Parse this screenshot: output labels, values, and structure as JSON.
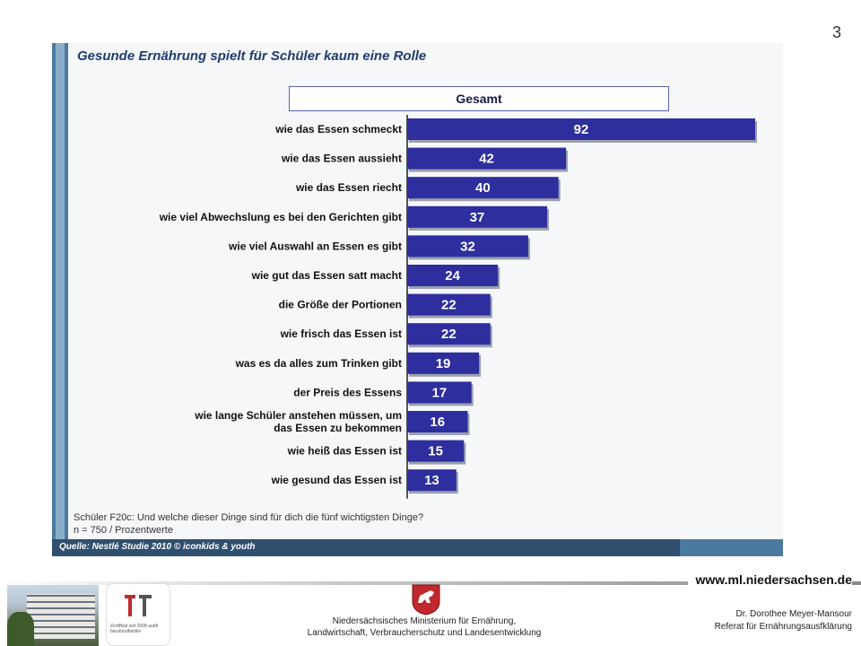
{
  "page_number": "3",
  "chart_data": {
    "type": "bar",
    "orientation": "horizontal",
    "title": "Gesunde Ernährung spielt für Schüler kaum eine Rolle",
    "series": [
      {
        "name": "Gesamt",
        "color": "#2e2e9e",
        "values": [
          92,
          42,
          40,
          37,
          32,
          24,
          22,
          22,
          19,
          17,
          16,
          15,
          13
        ]
      }
    ],
    "categories": [
      [
        "wie das Essen schmeckt"
      ],
      [
        "wie das Essen aussieht"
      ],
      [
        "wie das Essen riecht"
      ],
      [
        "wie viel Abwechslung es bei den Gerichten gibt"
      ],
      [
        "wie viel Auswahl an Essen es gibt"
      ],
      [
        "wie gut das Essen satt macht"
      ],
      [
        "die Größe der Portionen"
      ],
      [
        "wie frisch das Essen ist"
      ],
      [
        "was es da alles zum Trinken gibt"
      ],
      [
        "der Preis des Essens"
      ],
      [
        "wie lange Schüler anstehen müssen, um",
        "das Essen zu bekommen"
      ],
      [
        "wie heiß das Essen ist"
      ],
      [
        "wie gesund das Essen ist"
      ]
    ],
    "xlim": [
      0,
      92
    ],
    "grid": false,
    "legend": "top"
  },
  "question_line1": "Schüler F20c: Und welche dieser Dinge sind für dich die fünf wichtigsten Dinge?",
  "question_line2": "n = 750 / Prozentwerte",
  "source": "Quelle: Nestlé Studie 2010 © iconkids & youth",
  "footer": {
    "url": "www.ml.niedersachsen.de",
    "ministry_line1": "Niedersächsisches Ministerium für Ernährung,",
    "ministry_line2": "Landwirtschaft, Verbraucherschutz und Landesentwicklung",
    "author_line1": "Dr. Dorothee Meyer-Mansour",
    "author_line2": "Referat für Ernährungsausfklärung",
    "cert_text": "Zertifikat seit 2008 audit berufundfamilie"
  }
}
